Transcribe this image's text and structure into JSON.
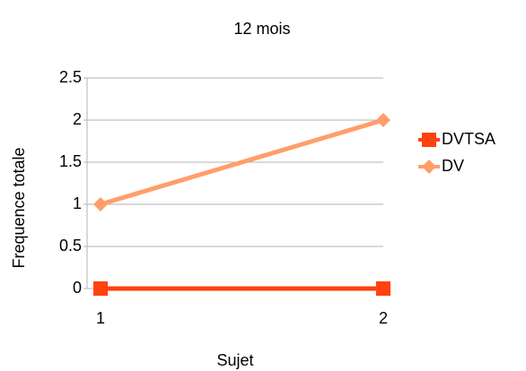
{
  "chart_data": {
    "type": "line",
    "title": "12 mois",
    "x_label": "Sujet",
    "y_label": "Frequence totale",
    "categories": [
      "1",
      "2"
    ],
    "series": [
      {
        "name": "DVTSA",
        "color": "#ff420e",
        "marker": "square",
        "values": [
          0,
          0
        ]
      },
      {
        "name": "DV",
        "color": "#ff9e6a",
        "marker": "diamond",
        "values": [
          1,
          2
        ]
      }
    ],
    "ylim": [
      0,
      2.5
    ],
    "yticks": [
      0,
      0.5,
      1,
      1.5,
      2,
      2.5
    ],
    "grid": true,
    "legend": "right"
  }
}
